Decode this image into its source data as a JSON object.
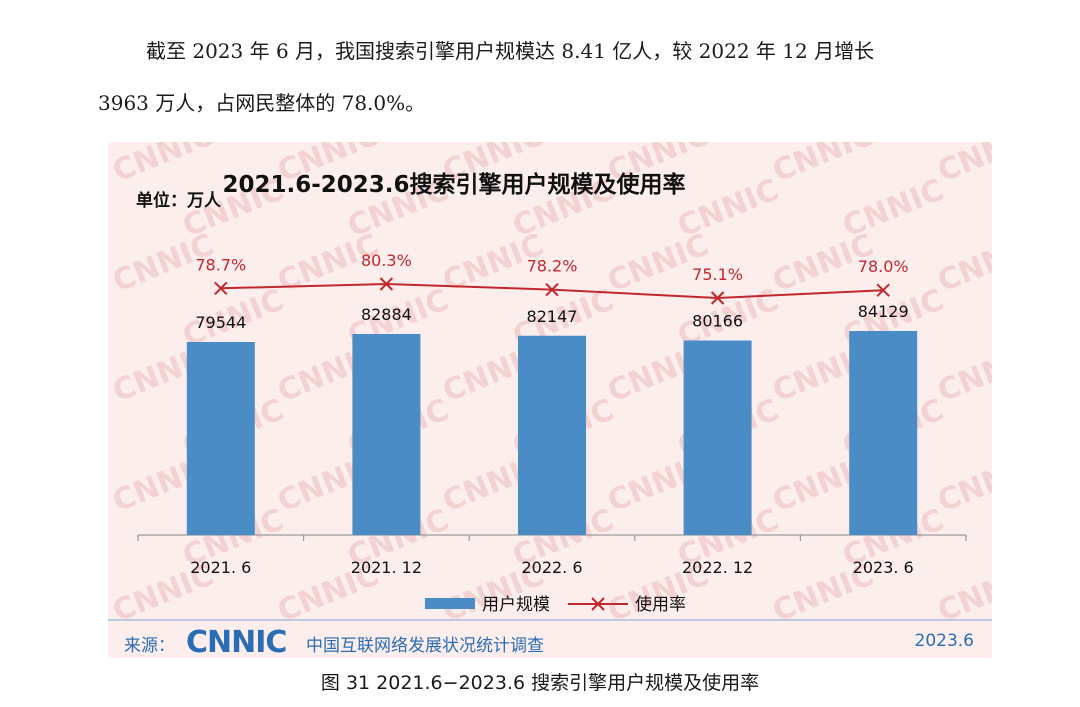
{
  "paragraph": {
    "line1": "截至 2023 年 6 月，我国搜索引擎用户规模达 8.41 亿人，较 2022 年 12 月增长",
    "line2": "3963 万人，占网民整体的 78.0%。"
  },
  "watermark": "CNNIC",
  "chart_data": {
    "type": "bar",
    "title": "2021.6-2023.6搜索引擎用户规模及使用率",
    "unit_label": "单位：万人",
    "categories": [
      "2021. 6",
      "2021. 12",
      "2022. 6",
      "2022. 12",
      "2023. 6"
    ],
    "series": [
      {
        "name": "用户规模",
        "type": "bar",
        "values": [
          79544,
          82884,
          82147,
          80166,
          84129
        ],
        "labels": [
          "79544",
          "82884",
          "82147",
          "80166",
          "84129"
        ],
        "color": "#4a8cc6"
      },
      {
        "name": "使用率",
        "type": "line",
        "values": [
          78.7,
          80.3,
          78.2,
          75.1,
          78.0
        ],
        "labels": [
          "78.7%",
          "80.3%",
          "78.2%",
          "75.1%",
          "78.0%"
        ],
        "color": "#c0282d"
      }
    ],
    "legend": "bottom",
    "grid": false
  },
  "source": {
    "label": "来源：",
    "logo": "CNNIC",
    "org": "中国互联网络发展状况统计调查",
    "date": "2023.6"
  },
  "caption": "图 31  2021.6−2023.6 搜索引擎用户规模及使用率"
}
